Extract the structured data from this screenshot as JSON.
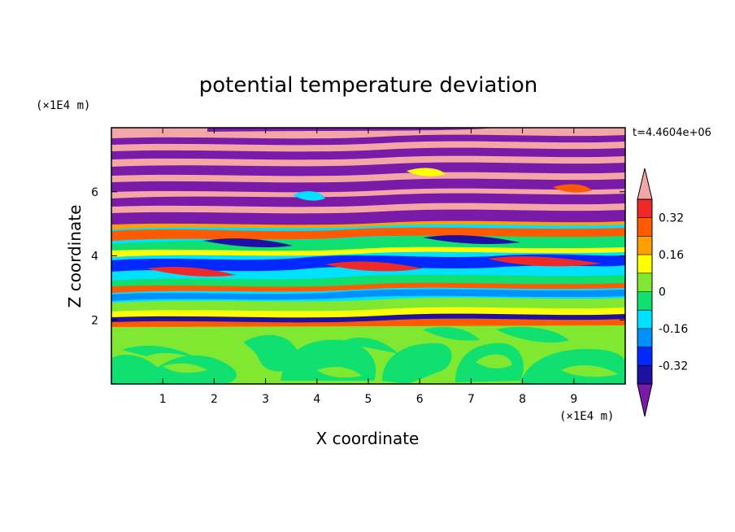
{
  "chart_data": {
    "type": "contour",
    "title": "potential temperature deviation",
    "xlabel": "X coordinate",
    "ylabel": "Z coordinate",
    "x_unit": "(×1E4 m)",
    "y_unit": "(×1E4 m)",
    "time_label": "t=4.4604e+06",
    "xlim": [
      0,
      10
    ],
    "ylim": [
      0,
      8
    ],
    "x_ticks": [
      1,
      2,
      3,
      4,
      5,
      6,
      7,
      8,
      9
    ],
    "y_ticks": [
      2,
      4,
      6
    ],
    "colorbar": {
      "levels": [
        -0.4,
        -0.32,
        -0.24,
        -0.16,
        -0.08,
        0,
        0.08,
        0.16,
        0.24,
        0.32,
        0.4
      ],
      "labels": [
        "0.32",
        "0.16",
        "0",
        "-0.16",
        "-0.32"
      ],
      "label_values": [
        0.32,
        0.16,
        0,
        -0.16,
        -0.32
      ],
      "colors_low_to_high": [
        "#1e10a0",
        "#0028ff",
        "#0090ff",
        "#00e0ff",
        "#10e070",
        "#80e830",
        "#ffff00",
        "#ffa000",
        "#ff5a00",
        "#f02828"
      ],
      "under_color": "#7a1aa8",
      "over_color": "#f4a6a6"
    },
    "regions": {
      "lower_layer": {
        "z_range": [
          0,
          1.5
        ],
        "typical_value_range": [
          -0.08,
          0.08
        ]
      },
      "mixing_layer": {
        "z_range": [
          1.9,
          5.0
        ],
        "typical_value_range": [
          -0.4,
          0.4
        ]
      },
      "upper_layer": {
        "z_range": [
          5.0,
          8.0
        ],
        "typical_value_range": [
          "< -0.4",
          "> 0.4"
        ]
      }
    }
  }
}
